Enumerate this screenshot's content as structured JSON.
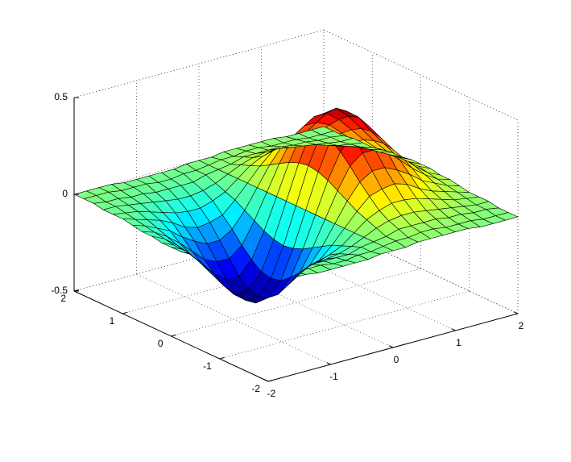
{
  "chart_data": {
    "type": "surface",
    "x": [
      -2,
      -1.8,
      -1.6,
      -1.4,
      -1.2,
      -1,
      -0.8,
      -0.6,
      -0.4,
      -0.2,
      0,
      0.2,
      0.4,
      0.6,
      0.8,
      1,
      1.2,
      1.4,
      1.6,
      1.8,
      2
    ],
    "y": [
      -2,
      -1.8,
      -1.6,
      -1.4,
      -1.2,
      -1,
      -0.8,
      -0.6,
      -0.4,
      -0.2,
      0,
      0.2,
      0.4,
      0.6,
      0.8,
      1,
      1.2,
      1.4,
      1.6,
      1.8,
      2
    ],
    "z": [
      [
        0,
        0,
        0,
        0,
        -0.01,
        -0.01,
        -0.01,
        -0.01,
        -0.01,
        0,
        0,
        0,
        0.01,
        0.01,
        0.01,
        0.01,
        0.01,
        0,
        0,
        0,
        0
      ],
      [
        0,
        0,
        0,
        -0.01,
        -0.01,
        -0.01,
        -0.02,
        -0.02,
        -0.01,
        -0.01,
        0,
        0.01,
        0.01,
        0.02,
        0.02,
        0.01,
        0.01,
        0.01,
        0,
        0,
        0
      ],
      [
        0,
        -0.01,
        -0.01,
        -0.02,
        -0.02,
        -0.03,
        -0.03,
        -0.03,
        -0.03,
        -0.01,
        0,
        0.01,
        0.03,
        0.03,
        0.03,
        0.03,
        0.02,
        0.02,
        0.01,
        0.01,
        0
      ],
      [
        -0.01,
        -0.01,
        -0.02,
        -0.03,
        -0.04,
        -0.05,
        -0.06,
        -0.06,
        -0.05,
        -0.03,
        0,
        0.03,
        0.05,
        0.06,
        0.06,
        0.05,
        0.04,
        0.03,
        0.02,
        0.01,
        0.01
      ],
      [
        -0.01,
        -0.02,
        -0.03,
        -0.05,
        -0.07,
        -0.09,
        -0.1,
        -0.1,
        -0.08,
        -0.05,
        0,
        0.05,
        0.08,
        0.1,
        0.1,
        0.09,
        0.07,
        0.05,
        0.03,
        0.02,
        0.01
      ],
      [
        -0.01,
        -0.03,
        -0.05,
        -0.07,
        -0.1,
        -0.14,
        -0.16,
        -0.15,
        -0.13,
        -0.07,
        0,
        0.07,
        0.13,
        0.15,
        0.16,
        0.14,
        0.1,
        0.07,
        0.05,
        0.03,
        0.01
      ],
      [
        -0.02,
        -0.04,
        -0.07,
        -0.1,
        -0.15,
        -0.19,
        -0.22,
        -0.22,
        -0.18,
        -0.1,
        0,
        0.1,
        0.18,
        0.22,
        0.22,
        0.19,
        0.15,
        0.1,
        0.07,
        0.04,
        0.02
      ],
      [
        -0.03,
        -0.05,
        -0.09,
        -0.14,
        -0.2,
        -0.26,
        -0.29,
        -0.29,
        -0.24,
        -0.13,
        0,
        0.13,
        0.24,
        0.29,
        0.29,
        0.26,
        0.2,
        0.14,
        0.09,
        0.05,
        0.03
      ],
      [
        -0.03,
        -0.06,
        -0.11,
        -0.17,
        -0.24,
        -0.31,
        -0.36,
        -0.36,
        -0.29,
        -0.16,
        0,
        0.16,
        0.29,
        0.36,
        0.36,
        0.31,
        0.24,
        0.17,
        0.11,
        0.06,
        0.03
      ],
      [
        -0.04,
        -0.07,
        -0.12,
        -0.19,
        -0.27,
        -0.35,
        -0.41,
        -0.4,
        -0.33,
        -0.18,
        0,
        0.18,
        0.33,
        0.4,
        0.41,
        0.35,
        0.27,
        0.19,
        0.12,
        0.07,
        0.04
      ],
      [
        -0.04,
        -0.07,
        -0.12,
        -0.2,
        -0.28,
        -0.37,
        -0.42,
        -0.42,
        -0.34,
        -0.19,
        0,
        0.19,
        0.34,
        0.42,
        0.42,
        0.37,
        0.28,
        0.2,
        0.12,
        0.07,
        0.04
      ],
      [
        -0.04,
        -0.07,
        -0.12,
        -0.19,
        -0.27,
        -0.35,
        -0.41,
        -0.4,
        -0.33,
        -0.18,
        0,
        0.18,
        0.33,
        0.4,
        0.41,
        0.35,
        0.27,
        0.19,
        0.12,
        0.07,
        0.04
      ],
      [
        -0.03,
        -0.06,
        -0.11,
        -0.17,
        -0.24,
        -0.31,
        -0.36,
        -0.36,
        -0.29,
        -0.16,
        0,
        0.16,
        0.29,
        0.36,
        0.36,
        0.31,
        0.24,
        0.17,
        0.11,
        0.06,
        0.03
      ],
      [
        -0.03,
        -0.05,
        -0.09,
        -0.14,
        -0.2,
        -0.26,
        -0.29,
        -0.29,
        -0.24,
        -0.13,
        0,
        0.13,
        0.24,
        0.29,
        0.29,
        0.26,
        0.2,
        0.14,
        0.09,
        0.05,
        0.03
      ],
      [
        -0.02,
        -0.04,
        -0.07,
        -0.1,
        -0.15,
        -0.19,
        -0.22,
        -0.22,
        -0.18,
        -0.1,
        0,
        0.1,
        0.18,
        0.22,
        0.22,
        0.19,
        0.15,
        0.1,
        0.07,
        0.04,
        0.02
      ],
      [
        -0.01,
        -0.03,
        -0.05,
        -0.07,
        -0.1,
        -0.14,
        -0.16,
        -0.15,
        -0.13,
        -0.07,
        0,
        0.07,
        0.13,
        0.15,
        0.16,
        0.14,
        0.1,
        0.07,
        0.05,
        0.03,
        0.01
      ],
      [
        -0.01,
        -0.02,
        -0.03,
        -0.05,
        -0.07,
        -0.09,
        -0.1,
        -0.1,
        -0.08,
        -0.05,
        0,
        0.05,
        0.08,
        0.1,
        0.1,
        0.09,
        0.07,
        0.05,
        0.03,
        0.02,
        0.01
      ],
      [
        -0.01,
        -0.01,
        -0.02,
        -0.03,
        -0.04,
        -0.05,
        -0.06,
        -0.06,
        -0.05,
        -0.03,
        0,
        0.03,
        0.05,
        0.06,
        0.06,
        0.05,
        0.04,
        0.03,
        0.02,
        0.01,
        0.01
      ],
      [
        0,
        -0.01,
        -0.01,
        -0.02,
        -0.02,
        -0.03,
        -0.03,
        -0.03,
        -0.03,
        -0.01,
        0,
        0.01,
        0.03,
        0.03,
        0.03,
        0.03,
        0.02,
        0.02,
        0.01,
        0.01,
        0
      ],
      [
        0,
        0,
        0,
        -0.01,
        -0.01,
        -0.01,
        -0.02,
        -0.02,
        -0.01,
        -0.01,
        0,
        0.01,
        0.01,
        0.02,
        0.02,
        0.01,
        0.01,
        0.01,
        0,
        0,
        0
      ],
      [
        0,
        0,
        0,
        0,
        -0.01,
        -0.01,
        -0.01,
        -0.01,
        -0.01,
        0,
        0,
        0,
        0.01,
        0.01,
        0.01,
        0.01,
        0.01,
        0,
        0,
        0,
        0
      ]
    ],
    "xlim": [
      -2,
      2
    ],
    "ylim": [
      -2,
      2
    ],
    "zlim": [
      -0.5,
      0.5
    ],
    "xticks": [
      -2,
      -1,
      0,
      1,
      2
    ],
    "yticks": [
      -2,
      -1,
      0,
      1,
      2
    ],
    "zticks": [
      -0.5,
      0,
      0.5
    ],
    "grid": true,
    "colormap": "jet"
  }
}
